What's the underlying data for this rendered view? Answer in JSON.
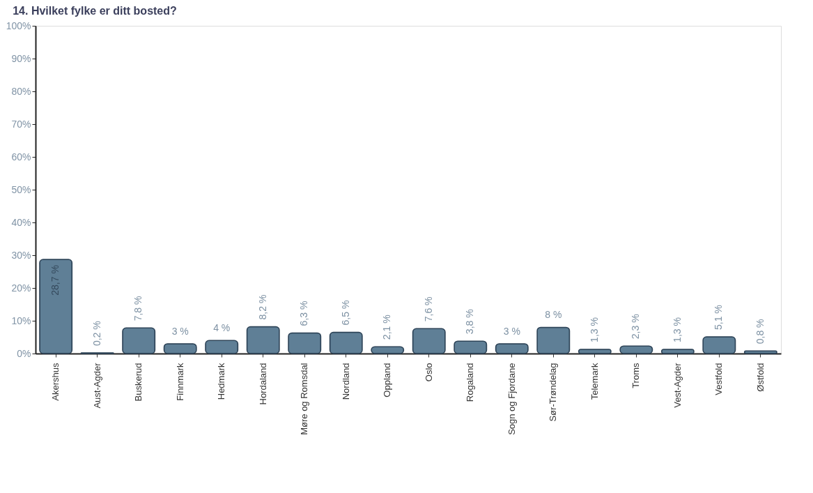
{
  "chart_data": {
    "type": "bar",
    "title": "14. Hvilket fylke er ditt bosted?",
    "categories": [
      "Akershus",
      "Aust-Agder",
      "Buskerud",
      "Finnmark",
      "Hedmark",
      "Hordaland",
      "Møre og Romsdal",
      "Nordland",
      "Oppland",
      "Oslo",
      "Rogaland",
      "Sogn og Fjordane",
      "Sør-Trøndelag",
      "Telemark",
      "Troms",
      "Vest-Agder",
      "Vestfold",
      "Østfold"
    ],
    "values": [
      28.7,
      0.2,
      7.8,
      3,
      4,
      8.2,
      6.3,
      6.5,
      2.1,
      7.6,
      3.8,
      3,
      8,
      1.3,
      2.3,
      1.3,
      5.1,
      0.8
    ],
    "value_labels": [
      "28,7 %",
      "0,2 %",
      "7,8 %",
      "3 %",
      "4 %",
      "8,2 %",
      "6,3 %",
      "6,5 %",
      "2,1 %",
      "7,6 %",
      "3,8 %",
      "3 %",
      "8 %",
      "1,3 %",
      "2,3 %",
      "1,3 %",
      "5,1 %",
      "0,8 %"
    ],
    "color": "#5f7f96",
    "ylim": [
      0,
      100
    ],
    "yticks": [
      {
        "value": 0,
        "label": "0%"
      },
      {
        "value": 10,
        "label": "10%"
      },
      {
        "value": 20,
        "label": "20%"
      },
      {
        "value": 30,
        "label": "30%"
      },
      {
        "value": 40,
        "label": "40%"
      },
      {
        "value": 50,
        "label": "50%"
      },
      {
        "value": 60,
        "label": "60%"
      },
      {
        "value": 70,
        "label": "70%"
      },
      {
        "value": 80,
        "label": "80%"
      },
      {
        "value": 90,
        "label": "90%"
      },
      {
        "value": 100,
        "label": "100%"
      }
    ],
    "grid": false
  }
}
